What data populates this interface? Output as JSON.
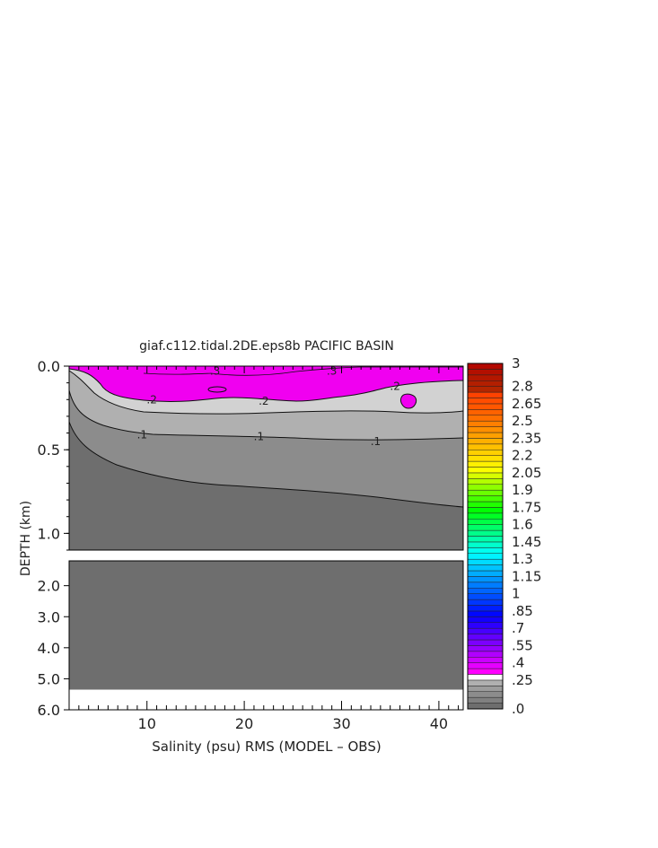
{
  "chart_data": {
    "type": "heatmap",
    "title": "giaf.c112.tidal.2DE.eps8b PACIFIC BASIN",
    "xlabel": "Salinity (psu) RMS (MODEL – OBS)",
    "ylabel": "DEPTH (km)",
    "x_range": [
      2,
      42.5
    ],
    "x_ticks": [
      "10",
      "20",
      "30",
      "40"
    ],
    "y_ticks_upper": [
      "0.0",
      "0.5",
      "1.0"
    ],
    "y_ticks_lower": [
      "2.0",
      "3.0",
      "4.0",
      "5.0",
      "6.0"
    ],
    "upper_depth_range_km": [
      0.0,
      1.1
    ],
    "lower_depth_range_km": [
      1.2,
      6.0
    ],
    "sea_floor_km": 5.35,
    "contour_labels": [
      {
        "text": ".3",
        "x": 17,
        "depth": 0.03
      },
      {
        "text": ".3",
        "x": 29,
        "depth": 0.03
      },
      {
        "text": ".2",
        "x": 10.5,
        "depth": 0.2
      },
      {
        "text": ".2",
        "x": 22,
        "depth": 0.21
      },
      {
        "text": ".2",
        "x": 35.5,
        "depth": 0.12
      },
      {
        "text": ".1",
        "x": 9.5,
        "depth": 0.41
      },
      {
        "text": ".1",
        "x": 21.5,
        "depth": 0.42
      },
      {
        "text": ".1",
        "x": 33.5,
        "depth": 0.45
      }
    ],
    "colorbar_labels": [
      "3",
      "2.8",
      "2.65",
      "2.5",
      "2.35",
      "2.2",
      "2.05",
      "1.9",
      "1.75",
      "1.6",
      "1.45",
      "1.3",
      "1.15",
      "1",
      ".85",
      ".7",
      ".55",
      ".4",
      ".25",
      ".0"
    ],
    "colorbar_range": [
      0,
      3
    ],
    "colorbar_step": 0.05,
    "colors": {
      "magenta": "#f000f0",
      "light_gray": "#d2d2d2",
      "mid_gray": "#b0b0b0",
      "gray": "#8c8c8c",
      "dark_gray": "#6e6e6e"
    }
  }
}
